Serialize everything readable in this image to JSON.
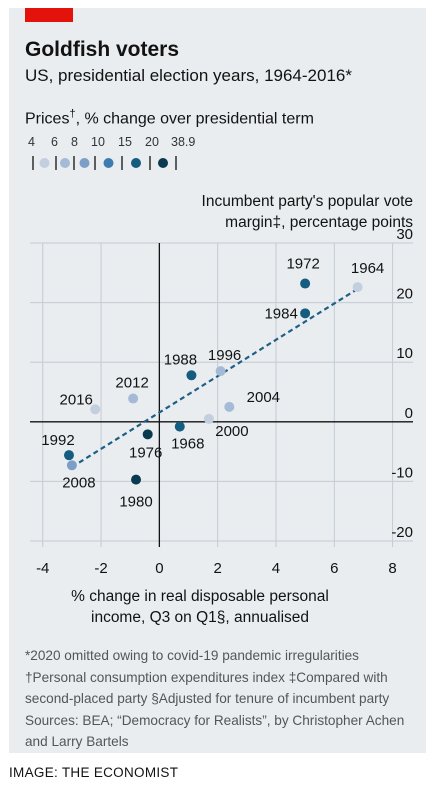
{
  "header": {
    "title": "Goldfish voters",
    "subtitle": "US, presidential election years, 1964-2016*"
  },
  "legend": {
    "title": "Prices",
    "title_mark": "†",
    "title_suffix": ", % change over presidential term",
    "breaks": [
      "4",
      "6",
      "8",
      "10",
      "15",
      "20",
      "38.9"
    ],
    "colors": [
      "#c3cfdf",
      "#a5bad6",
      "#7d9ec6",
      "#3c7cb1",
      "#145d80",
      "#0a3a4f"
    ]
  },
  "chart_data": {
    "type": "scatter",
    "ylabel_line1": "Incumbent party's popular vote",
    "ylabel_line2": "margin‡, percentage points",
    "xlabel_line1": "% change in real disposable personal",
    "xlabel_line2": "income, Q3 on Q1§, annualised",
    "xlim": [
      -4.3,
      8.7
    ],
    "ylim": [
      -20,
      30
    ],
    "xticks": [
      "-4",
      "-2",
      "0",
      "2",
      "4",
      "6",
      "8"
    ],
    "yticks": [
      "30",
      "20",
      "10",
      "0",
      "-10",
      "-20"
    ],
    "xtick_values": [
      -4,
      -2,
      0,
      2,
      4,
      6,
      8
    ],
    "ytick_values": [
      30,
      20,
      10,
      0,
      -10,
      -20
    ],
    "grid": true,
    "trendline": {
      "x1": -3.0,
      "y1": -7.6,
      "x2": 6.8,
      "y2": 22.3
    },
    "points": [
      {
        "label": "1964",
        "x": 6.8,
        "y": 22.6,
        "price_bin": 0
      },
      {
        "label": "1972",
        "x": 5.0,
        "y": 23.2,
        "price_bin": 4
      },
      {
        "label": "1984",
        "x": 5.0,
        "y": 18.2,
        "price_bin": 4
      },
      {
        "label": "1996",
        "x": 2.1,
        "y": 8.5,
        "price_bin": 1
      },
      {
        "label": "1988",
        "x": 1.1,
        "y": 7.8,
        "price_bin": 4
      },
      {
        "label": "2004",
        "x": 2.4,
        "y": 2.5,
        "price_bin": 1
      },
      {
        "label": "2000",
        "x": 1.7,
        "y": 0.5,
        "price_bin": 0
      },
      {
        "label": "2016",
        "x": -2.2,
        "y": 2.1,
        "price_bin": 0
      },
      {
        "label": "2012",
        "x": -0.9,
        "y": 3.9,
        "price_bin": 1
      },
      {
        "label": "1968",
        "x": 0.7,
        "y": -0.8,
        "price_bin": 4
      },
      {
        "label": "1976",
        "x": -0.4,
        "y": -2.1,
        "price_bin": 5
      },
      {
        "label": "1992",
        "x": -3.1,
        "y": -5.6,
        "price_bin": 4
      },
      {
        "label": "2008",
        "x": -3.0,
        "y": -7.3,
        "price_bin": 2
      },
      {
        "label": "1980",
        "x": -0.8,
        "y": -9.7,
        "price_bin": 5
      }
    ]
  },
  "footnotes": [
    "*2020 omitted owing to covid-19 pandemic irregularities",
    "†Personal consumption expenditures index   ‡Compared with",
    "second-placed party   §Adjusted for tenure of incumbent party",
    "Sources: BEA; “Democracy for Realists”, by Christopher Achen",
    "and Larry Bartels"
  ],
  "credit": "IMAGE: THE ECONOMIST"
}
